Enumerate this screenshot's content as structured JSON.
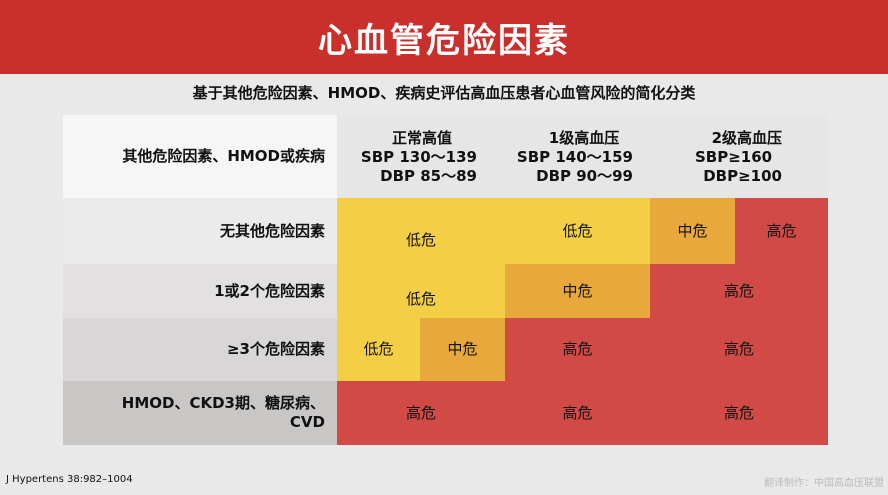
{
  "title": "心血管危险因素",
  "subtitle": "基于其他危险因素、HMOD、疾病史评估高血压患者心血管风险的简化分类",
  "table": {
    "corner": "其他危险因素、HMOD或疾病",
    "columns": [
      {
        "l1": "正常高值",
        "l2": "SBP 130～139",
        "l3": "DBP 85～89"
      },
      {
        "l1": "1级高血压",
        "l2": "SBP 140～159",
        "l3": "DBP 90～99"
      },
      {
        "l1": "2级高血压",
        "l2": "SBP≥160",
        "l3": "DBP≥100"
      }
    ],
    "rows": [
      "无其他危险因素",
      "1或2个危险因素",
      "≥3个危险因素",
      "HMOD、CKD3期、糖尿病、CVD"
    ],
    "risk": {
      "low": "低危",
      "mid": "中危",
      "high": "高危"
    }
  },
  "colors": {
    "low": "#f4cf46",
    "mid": "#e8a83c",
    "high": "#d24a45",
    "header": "#c9302c"
  },
  "footer": {
    "citation": "J Hypertens 38:982–1004",
    "credit": "翻译制作：中国高血压联盟"
  }
}
